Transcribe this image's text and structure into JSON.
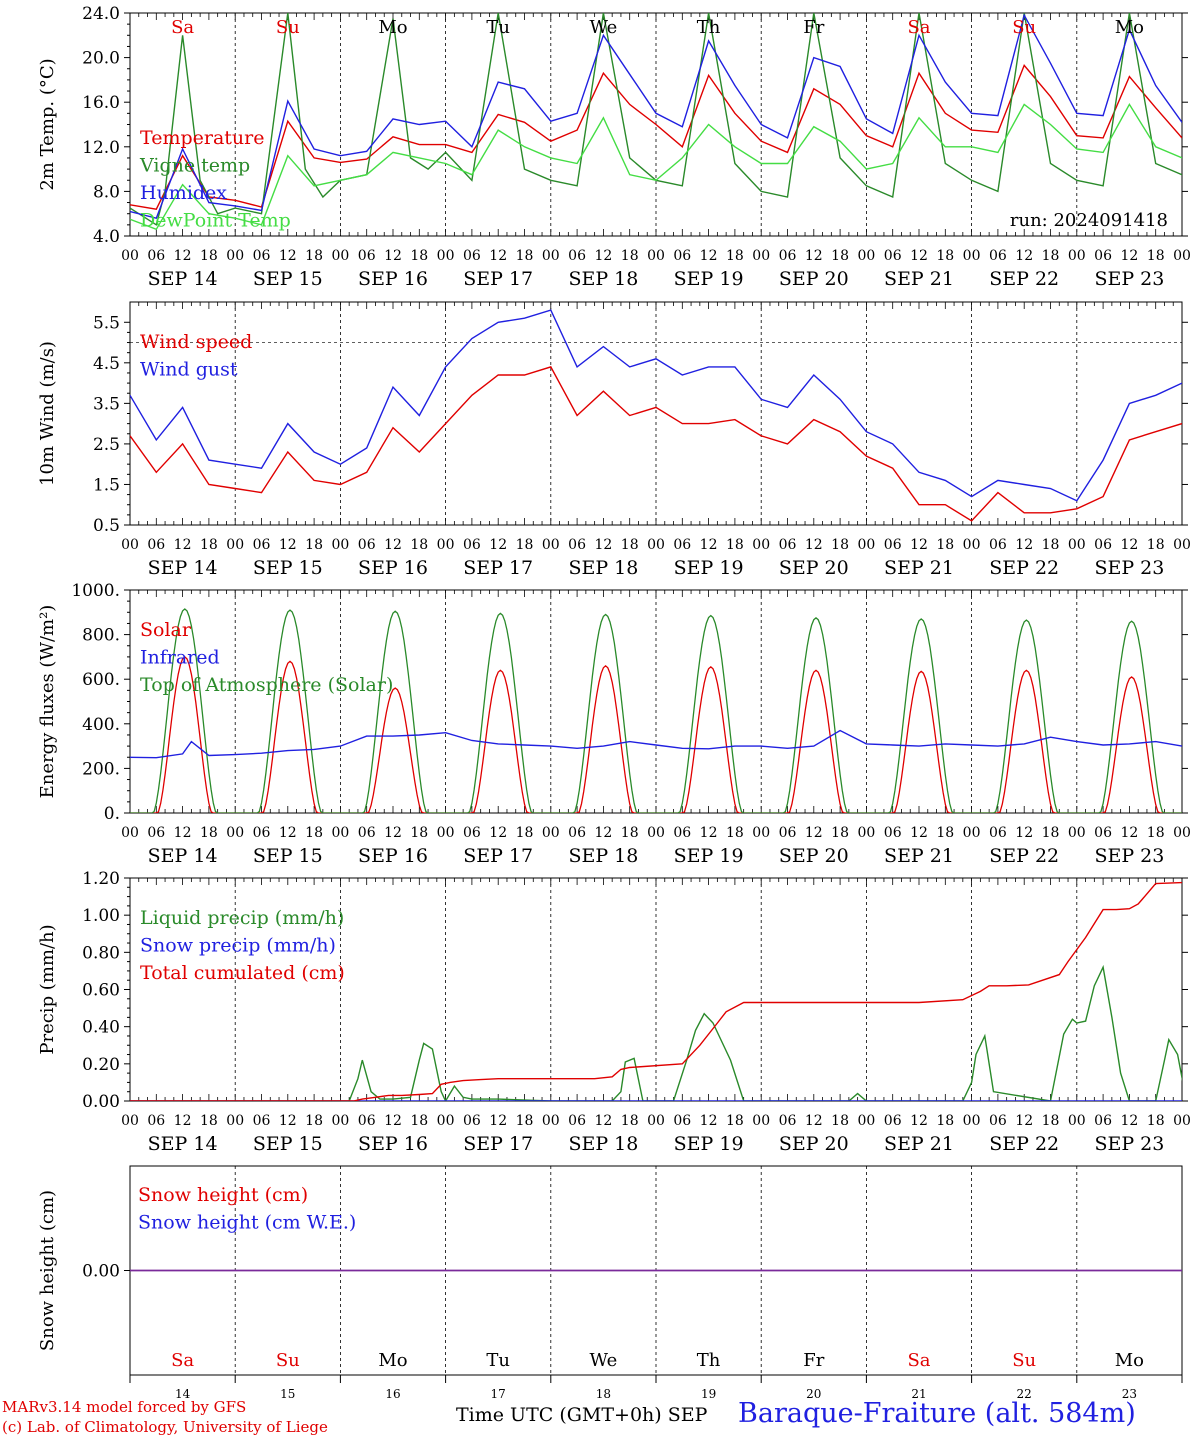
{
  "layout": {
    "x_ticks": [
      "00",
      "06",
      "12",
      "18"
    ],
    "dates": [
      "SEP 14",
      "SEP 15",
      "SEP 16",
      "SEP 17",
      "SEP 18",
      "SEP 19",
      "SEP 20",
      "SEP 21",
      "SEP 22",
      "SEP 23"
    ],
    "weekdays": [
      {
        "label": "Sa",
        "color": "#e00000"
      },
      {
        "label": "Su",
        "color": "#e00000"
      },
      {
        "label": "Mo",
        "color": "#000000"
      },
      {
        "label": "Tu",
        "color": "#000000"
      },
      {
        "label": "We",
        "color": "#000000"
      },
      {
        "label": "Th",
        "color": "#000000"
      },
      {
        "label": "Fr",
        "color": "#000000"
      },
      {
        "label": "Sa",
        "color": "#e00000"
      },
      {
        "label": "Su",
        "color": "#e00000"
      },
      {
        "label": "Mo",
        "color": "#000000"
      }
    ],
    "day_numbers": [
      "14",
      "15",
      "16",
      "17",
      "18",
      "19",
      "20",
      "21",
      "22",
      "23"
    ]
  },
  "footer": {
    "credit_line1": "MARv3.14 model forced by GFS",
    "credit_line2": "(c) Lab. of Climatology, University of Liege",
    "xaxis_title": "Time UTC (GMT+0h) SEP",
    "station": "Baraque-Fraiture (alt. 584m)"
  },
  "chart_data": [
    {
      "type": "line",
      "ylabel": "2m Temp. (°C)",
      "ylim": [
        4,
        24
      ],
      "yticks": [
        "4.0",
        "8.0",
        "12.0",
        "16.0",
        "20.0",
        "24.0"
      ],
      "annotation": "run: 2024091418",
      "x_unit": "hours since SEP 14 00 UTC",
      "series": [
        {
          "name": "Temperature",
          "color": "#e00000",
          "x": [
            0,
            6,
            12,
            18,
            24,
            30,
            36,
            42,
            48,
            54,
            60,
            66,
            72,
            78,
            84,
            90,
            96,
            102,
            108,
            114,
            120,
            126,
            132,
            138,
            144,
            150,
            156,
            162,
            168,
            174,
            180,
            186,
            192,
            198,
            204,
            210,
            216,
            222,
            228,
            234,
            240
          ],
          "values": [
            6.8,
            6.4,
            11.2,
            7.5,
            7.2,
            6.6,
            14.3,
            11.0,
            10.6,
            10.9,
            12.9,
            12.2,
            12.2,
            11.5,
            14.9,
            14.2,
            12.5,
            13.5,
            18.6,
            15.8,
            14.0,
            12.0,
            18.4,
            15.0,
            12.5,
            11.5,
            17.2,
            15.8,
            13.0,
            12.0,
            18.6,
            15.0,
            13.5,
            13.3,
            19.3,
            16.5,
            13.0,
            12.8,
            18.3,
            15.5,
            12.8
          ]
        },
        {
          "name": "Vigne temp",
          "color": "#2a8a2a",
          "x": [
            0,
            6,
            8,
            12,
            16,
            20,
            24,
            30,
            36,
            40,
            44,
            48,
            54,
            60,
            64,
            68,
            72,
            78,
            84,
            90,
            96,
            102,
            108,
            114,
            120,
            126,
            132,
            138,
            144,
            150,
            156,
            162,
            168,
            174,
            180,
            186,
            192,
            198,
            204,
            210,
            216,
            222,
            228,
            234,
            240
          ],
          "values": [
            6.5,
            5.0,
            8.0,
            22.0,
            9.0,
            6.0,
            6.5,
            6.0,
            24.0,
            10.0,
            7.5,
            9.0,
            9.5,
            23.5,
            11.0,
            10.0,
            11.5,
            9.0,
            24.0,
            10.0,
            9.0,
            8.5,
            24.0,
            11.0,
            9.0,
            8.5,
            24.0,
            10.5,
            8.0,
            7.5,
            24.0,
            11.0,
            8.5,
            7.5,
            24.0,
            10.5,
            9.0,
            8.0,
            24.0,
            10.5,
            9.0,
            8.5,
            24.0,
            10.5,
            9.5
          ]
        },
        {
          "name": "Humidex",
          "color": "#2020e0",
          "x": [
            0,
            6,
            12,
            18,
            24,
            30,
            36,
            42,
            48,
            54,
            60,
            66,
            72,
            78,
            84,
            90,
            96,
            102,
            108,
            114,
            120,
            126,
            132,
            138,
            144,
            150,
            156,
            162,
            168,
            174,
            180,
            186,
            192,
            198,
            204,
            210,
            216,
            222,
            228,
            234,
            240
          ],
          "values": [
            6.2,
            5.6,
            11.8,
            7.0,
            6.7,
            6.3,
            16.1,
            11.8,
            11.2,
            11.6,
            14.5,
            14.0,
            14.3,
            12.0,
            17.8,
            17.2,
            14.3,
            15.0,
            22.0,
            18.5,
            15.0,
            13.8,
            21.5,
            17.5,
            14.0,
            12.8,
            20.0,
            19.2,
            14.5,
            13.2,
            22.0,
            17.8,
            15.0,
            14.8,
            23.8,
            19.5,
            15.0,
            14.8,
            22.5,
            17.5,
            14.2
          ]
        },
        {
          "name": "DewPoint Temp",
          "color": "#44dd44",
          "x": [
            0,
            6,
            12,
            18,
            24,
            30,
            36,
            42,
            48,
            54,
            60,
            66,
            72,
            78,
            84,
            90,
            96,
            102,
            108,
            114,
            120,
            126,
            132,
            138,
            144,
            150,
            156,
            162,
            168,
            174,
            180,
            186,
            192,
            198,
            204,
            210,
            216,
            222,
            228,
            234,
            240
          ],
          "values": [
            5.5,
            4.6,
            8.6,
            6.0,
            5.6,
            5.0,
            11.2,
            8.5,
            9.0,
            9.5,
            11.5,
            11.0,
            10.5,
            9.5,
            13.5,
            12.0,
            11.0,
            10.5,
            14.6,
            9.5,
            9.0,
            11.0,
            14.0,
            12.0,
            10.5,
            10.5,
            13.8,
            12.5,
            10.0,
            10.5,
            14.6,
            12.0,
            12.0,
            11.5,
            15.8,
            14.0,
            11.8,
            11.5,
            15.8,
            12.0,
            11.0
          ]
        }
      ]
    },
    {
      "type": "line",
      "ylabel": "10m Wind (m/s)",
      "ylim": [
        0.5,
        6.0
      ],
      "yticks": [
        "0.5",
        "1.5",
        "2.5",
        "3.5",
        "4.5",
        "5.5"
      ],
      "reference_line": 5.0,
      "x_unit": "hours since SEP 14 00 UTC",
      "series": [
        {
          "name": "Wind speed",
          "color": "#e00000",
          "x": [
            0,
            6,
            12,
            18,
            24,
            30,
            36,
            42,
            48,
            54,
            60,
            66,
            72,
            78,
            84,
            90,
            96,
            102,
            108,
            114,
            120,
            126,
            132,
            138,
            144,
            150,
            156,
            162,
            168,
            174,
            180,
            186,
            192,
            198,
            204,
            210,
            216,
            222,
            228,
            234,
            240
          ],
          "values": [
            2.7,
            1.8,
            2.5,
            1.5,
            1.4,
            1.3,
            2.3,
            1.6,
            1.5,
            1.8,
            2.9,
            2.3,
            3.0,
            3.7,
            4.2,
            4.2,
            4.4,
            3.2,
            3.8,
            3.2,
            3.4,
            3.0,
            3.0,
            3.1,
            2.7,
            2.5,
            3.1,
            2.8,
            2.2,
            1.9,
            1.0,
            1.0,
            0.6,
            1.3,
            0.8,
            0.8,
            0.9,
            1.2,
            2.6,
            2.8,
            3.0
          ]
        },
        {
          "name": "Wind gust",
          "color": "#2020e0",
          "x": [
            0,
            6,
            12,
            18,
            24,
            30,
            36,
            42,
            48,
            54,
            60,
            66,
            72,
            78,
            84,
            90,
            96,
            102,
            108,
            114,
            120,
            126,
            132,
            138,
            144,
            150,
            156,
            162,
            168,
            174,
            180,
            186,
            192,
            198,
            204,
            210,
            216,
            222,
            228,
            234,
            240
          ],
          "values": [
            3.7,
            2.6,
            3.4,
            2.1,
            2.0,
            1.9,
            3.0,
            2.3,
            2.0,
            2.4,
            3.9,
            3.2,
            4.4,
            5.1,
            5.5,
            5.6,
            5.8,
            4.4,
            4.9,
            4.4,
            4.6,
            4.2,
            4.4,
            4.4,
            3.6,
            3.4,
            4.2,
            3.6,
            2.8,
            2.5,
            1.8,
            1.6,
            1.2,
            1.6,
            1.5,
            1.4,
            1.1,
            2.1,
            3.5,
            3.7,
            4.0
          ]
        }
      ]
    },
    {
      "type": "line",
      "ylabel": "Energy fluxes (W/m²)",
      "ylim": [
        0,
        1000
      ],
      "yticks": [
        "0.",
        "200.",
        "400.",
        "600.",
        "800.",
        "1000."
      ],
      "x_unit": "hours since SEP 14 00 UTC",
      "diurnal_series": [
        {
          "name": "Solar",
          "color": "#e00000",
          "peaks": [
            700,
            680,
            560,
            640,
            660,
            655,
            640,
            635,
            640,
            610
          ]
        },
        {
          "name": "Top of Atmosphere (Solar)",
          "color": "#2a8a2a",
          "peaks": [
            915,
            910,
            905,
            895,
            890,
            885,
            875,
            870,
            865,
            860
          ]
        }
      ],
      "series": [
        {
          "name": "Infrared",
          "color": "#2020e0",
          "x": [
            0,
            6,
            12,
            14,
            18,
            24,
            30,
            36,
            42,
            48,
            54,
            60,
            66,
            72,
            78,
            84,
            90,
            96,
            102,
            108,
            114,
            120,
            126,
            132,
            138,
            144,
            150,
            156,
            162,
            168,
            174,
            180,
            186,
            192,
            198,
            204,
            210,
            216,
            222,
            228,
            234,
            240
          ],
          "values": [
            250,
            248,
            265,
            320,
            258,
            262,
            268,
            280,
            285,
            300,
            345,
            345,
            350,
            360,
            325,
            310,
            305,
            300,
            290,
            300,
            320,
            305,
            290,
            288,
            300,
            300,
            290,
            300,
            370,
            310,
            305,
            300,
            310,
            305,
            300,
            310,
            340,
            320,
            305,
            310,
            320,
            300
          ]
        }
      ]
    },
    {
      "type": "line",
      "ylabel": "Precip (mm/h)",
      "ylim": [
        0,
        1.2
      ],
      "yticks": [
        "0.00",
        "0.20",
        "0.40",
        "0.60",
        "0.80",
        "1.00",
        "1.20"
      ],
      "x_unit": "hours since SEP 14 00 UTC",
      "series": [
        {
          "name": "Liquid precip (mm/h)",
          "color": "#2a8a2a",
          "x": [
            0,
            50,
            52,
            53,
            55,
            57,
            60,
            64,
            66,
            67,
            69,
            71,
            72,
            74,
            76,
            78,
            84,
            96,
            110,
            112,
            113,
            115,
            117,
            124,
            127,
            129,
            131,
            133,
            137,
            140,
            164,
            166,
            168,
            190,
            192,
            193,
            195,
            197,
            210,
            213,
            215,
            216,
            218,
            220,
            222,
            224,
            226,
            228,
            230,
            234,
            236,
            237,
            239,
            241
          ],
          "values": [
            0,
            0,
            0.12,
            0.22,
            0.05,
            0.01,
            0.01,
            0.02,
            0.22,
            0.31,
            0.28,
            0.05,
            0,
            0.08,
            0.02,
            0.01,
            0.01,
            0,
            0,
            0.05,
            0.21,
            0.23,
            0,
            0,
            0.22,
            0.38,
            0.47,
            0.42,
            0.22,
            0,
            0,
            0.04,
            0,
            0,
            0.1,
            0.25,
            0.35,
            0.05,
            0,
            0.36,
            0.44,
            0.42,
            0.43,
            0.62,
            0.72,
            0.45,
            0.15,
            0,
            0,
            0,
            0.22,
            0.33,
            0.25,
            0
          ]
        },
        {
          "name": "Snow precip (mm/h)",
          "color": "#2020e0",
          "x": [
            0,
            240
          ],
          "values": [
            0,
            0
          ]
        },
        {
          "name": "Total cumulated (cm)",
          "color": "#e00000",
          "x": [
            0,
            51,
            53,
            56,
            59,
            62,
            66,
            69,
            71,
            73,
            76,
            80,
            84,
            96,
            106,
            110,
            112,
            114,
            126,
            130,
            134,
            136,
            140,
            180,
            190,
            194,
            196,
            200,
            205,
            212,
            214,
            218,
            222,
            225,
            228,
            230,
            234,
            240
          ],
          "values": [
            0,
            0,
            0.01,
            0.02,
            0.03,
            0.03,
            0.035,
            0.04,
            0.09,
            0.1,
            0.11,
            0.115,
            0.12,
            0.12,
            0.12,
            0.13,
            0.17,
            0.18,
            0.2,
            0.3,
            0.42,
            0.48,
            0.53,
            0.53,
            0.545,
            0.59,
            0.62,
            0.62,
            0.625,
            0.68,
            0.75,
            0.88,
            1.03,
            1.03,
            1.035,
            1.06,
            1.17,
            1.175
          ]
        }
      ]
    },
    {
      "type": "line",
      "ylabel": "Snow height (cm)",
      "ylim": [
        -1,
        1
      ],
      "yticks": [
        "0.00"
      ],
      "x_unit": "hours since SEP 14 00 UTC",
      "series": [
        {
          "name": "Snow height (cm)",
          "color": "#e00000",
          "x": [
            0,
            240
          ],
          "values": [
            0,
            0
          ]
        },
        {
          "name": "Snow height (cm W.E.)",
          "color": "#2020e0",
          "x": [
            0,
            240
          ],
          "values": [
            0,
            0
          ]
        }
      ]
    }
  ]
}
